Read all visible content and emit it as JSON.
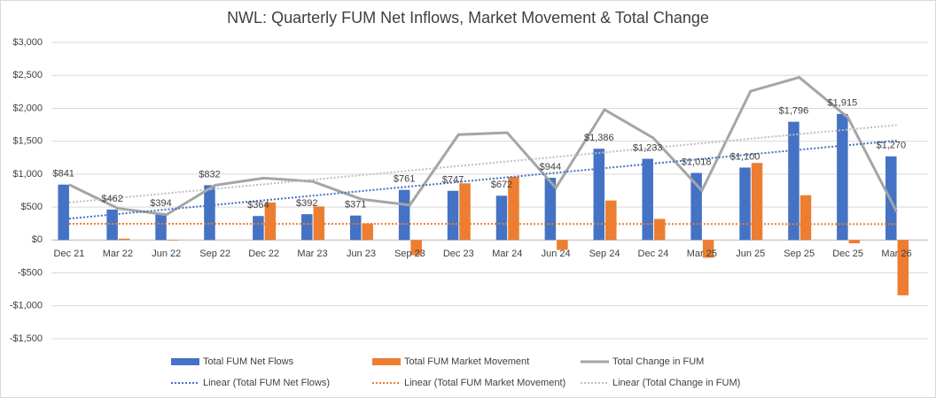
{
  "chart_data": {
    "type": "bar",
    "title": "NWL: Quarterly FUM Net Inflows, Market Movement & Total Change",
    "categories": [
      "Dec 21",
      "Mar 22",
      "Jun 22",
      "Sep 22",
      "Dec 22",
      "Mar 23",
      "Jun 23",
      "Sep 23",
      "Dec 23",
      "Mar 24",
      "Jun 24",
      "Sep 24",
      "Dec 24",
      "Mar 25",
      "Jun 25",
      "Sep 25",
      "Dec 25",
      "Mar 26"
    ],
    "series": [
      {
        "name": "Total FUM Net Flows",
        "type": "bar",
        "color": "#4472c4",
        "values": [
          841,
          462,
          394,
          832,
          364,
          392,
          371,
          761,
          747,
          672,
          944,
          1386,
          1233,
          1018,
          1100,
          1796,
          1915,
          1270
        ],
        "value_labels": [
          "$841",
          "$462",
          "$394",
          "$832",
          "$364",
          "$392",
          "$371",
          "$761",
          "$747",
          "$672",
          "$944",
          "$1,386",
          "$1,233",
          "$1,018",
          "$1,100",
          "$1,796",
          "$1,915",
          "$1,270"
        ],
        "trendline": {
          "name": "Linear (Total FUM Net Flows)",
          "color": "#4472c4"
        }
      },
      {
        "name": "Total FUM Market Movement",
        "type": "bar",
        "color": "#ed7d31",
        "values": [
          0,
          20,
          -10,
          0,
          570,
          510,
          250,
          -230,
          860,
          960,
          -150,
          600,
          320,
          -270,
          1170,
          680,
          -50,
          -840
        ],
        "trendline": {
          "name": "Linear (Total FUM Market Movement)",
          "color": "#ed7d31"
        }
      },
      {
        "name": "Total Change in FUM",
        "type": "line",
        "color": "#a5a5a5",
        "values": [
          841,
          480,
          384,
          832,
          940,
          890,
          620,
          530,
          1600,
          1630,
          790,
          1980,
          1550,
          750,
          2260,
          2470,
          1860,
          430
        ],
        "trendline": {
          "name": "Linear (Total Change in FUM)",
          "color": "#bfbfbf"
        }
      }
    ],
    "ylim": [
      -1500,
      3000
    ],
    "yticks": [
      {
        "value": -1500,
        "label": "-$1,500"
      },
      {
        "value": -1000,
        "label": "-$1,000"
      },
      {
        "value": -500,
        "label": "-$500"
      },
      {
        "value": 0,
        "label": "$0"
      },
      {
        "value": 500,
        "label": "$500"
      },
      {
        "value": 1000,
        "label": "$1,000"
      },
      {
        "value": 1500,
        "label": "$1,500"
      },
      {
        "value": 2000,
        "label": "$2,000"
      },
      {
        "value": 2500,
        "label": "$2,500"
      },
      {
        "value": 3000,
        "label": "$3,000"
      }
    ],
    "grid": true
  }
}
